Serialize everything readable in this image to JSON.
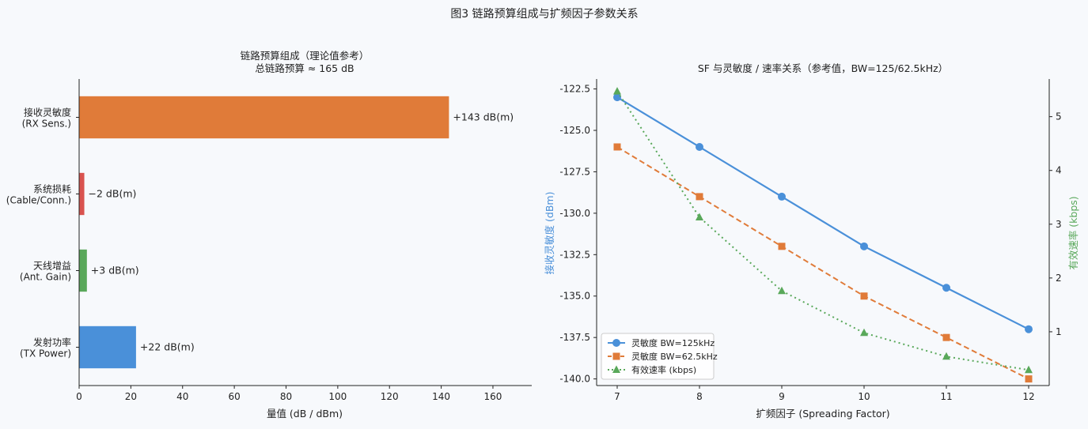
{
  "figure": {
    "title": "图3  链路预算组成与扩频因子参数关系"
  },
  "colors": {
    "blue": "#4a90d9",
    "orange": "#e07b39",
    "red": "#d9534f",
    "green": "#59a85a",
    "axis": "#222222"
  },
  "chart_data": [
    {
      "type": "bar",
      "orientation": "horizontal",
      "title": "链路预算组成（理论值参考）",
      "subtitle": "总链路预算 ≈ 165 dB",
      "xlabel": "量值 (dB / dBm)",
      "ylabel": "",
      "xlim": [
        0,
        175
      ],
      "xticks": [
        0,
        20,
        40,
        60,
        80,
        100,
        120,
        140,
        160
      ],
      "categories": [
        {
          "line1": "发射功率",
          "line2": "(TX Power)"
        },
        {
          "line1": "天线增益",
          "line2": "(Ant. Gain)"
        },
        {
          "line1": "系统损耗",
          "line2": "(Cable/Conn.)"
        },
        {
          "line1": "接收灵敏度",
          "line2": "(RX Sens.)"
        }
      ],
      "values": [
        22,
        3,
        2,
        143
      ],
      "bar_colors": [
        "blue",
        "green",
        "red",
        "orange"
      ],
      "data_labels": [
        "+22 dB(m)",
        "+3 dB(m)",
        "−2 dB(m)",
        "+143 dB(m)"
      ],
      "grid": false
    },
    {
      "type": "line",
      "title": "SF 与灵敏度 / 速率关系（参考值，BW=125/62.5kHz）",
      "xlabel": "扩频因子 (Spreading Factor)",
      "ylabel": "接收灵敏度 (dBm)",
      "y2label": "有效速率 (kbps)",
      "x": [
        7,
        8,
        9,
        10,
        11,
        12
      ],
      "xlim": [
        6.75,
        12.25
      ],
      "ylim": [
        -140.4,
        -121.9
      ],
      "yticks": [
        -122.5,
        -125.0,
        -127.5,
        -130.0,
        -132.5,
        -135.0,
        -137.5,
        -140.0
      ],
      "y2lim": [
        0.0,
        5.7
      ],
      "y2ticks": [
        1,
        2,
        3,
        4,
        5
      ],
      "legend_position": "lower-left",
      "grid": false,
      "series": [
        {
          "name": "灵敏度 BW=125kHz",
          "axis": "left",
          "color": "blue",
          "marker": "circle",
          "dash": "solid",
          "values": [
            -123.0,
            -126.0,
            -129.0,
            -132.0,
            -134.5,
            -137.0
          ]
        },
        {
          "name": "灵敏度 BW=62.5kHz",
          "axis": "left",
          "color": "orange",
          "marker": "square",
          "dash": "dashed",
          "values": [
            -126.0,
            -129.0,
            -132.0,
            -135.0,
            -137.5,
            -140.0
          ]
        },
        {
          "name": "有效速率 (kbps)",
          "axis": "right",
          "color": "green",
          "marker": "triangle",
          "dash": "dotted",
          "values": [
            5.47,
            3.13,
            1.76,
            0.98,
            0.54,
            0.29
          ]
        }
      ]
    }
  ]
}
